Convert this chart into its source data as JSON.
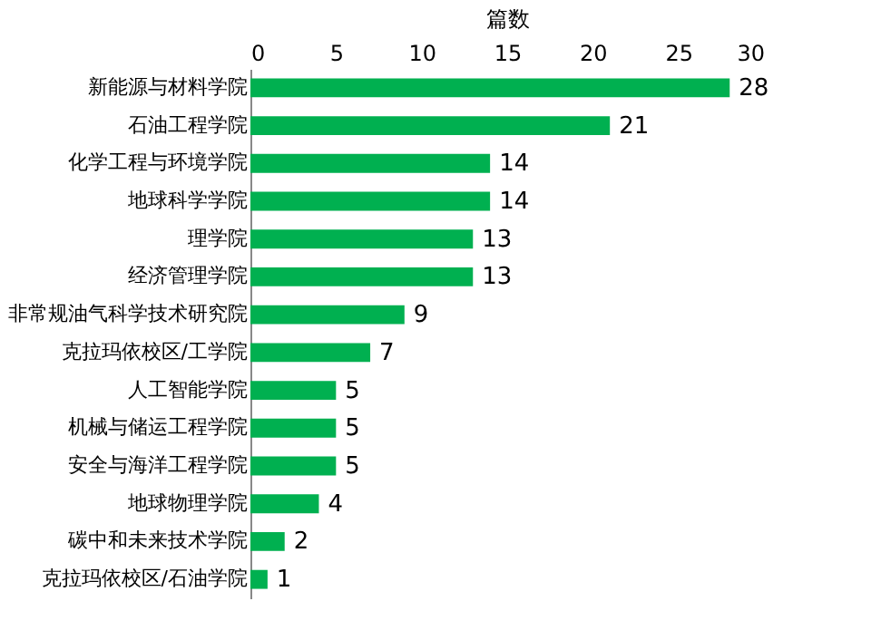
{
  "chart_data": {
    "type": "bar",
    "orientation": "horizontal",
    "xlabel": "篇数",
    "categories": [
      "新能源与材料学院",
      "石油工程学院",
      "化学工程与环境学院",
      "地球科学学院",
      "理学院",
      "经济管理学院",
      "非常规油气科学技术研究院",
      "克拉玛依校区/工学院",
      "人工智能学院",
      "机械与储运工程学院",
      "安全与海洋工程学院",
      "地球物理学院",
      "碳中和未来技术学院",
      "克拉玛依校区/石油学院"
    ],
    "values": [
      28,
      21,
      14,
      14,
      13,
      13,
      9,
      7,
      5,
      5,
      5,
      4,
      2,
      1
    ],
    "color": "#00b050",
    "xlim": [
      0,
      30
    ],
    "xticks": [
      0,
      5,
      10,
      15,
      20,
      25,
      30
    ],
    "data_labels": true,
    "grid": false
  }
}
